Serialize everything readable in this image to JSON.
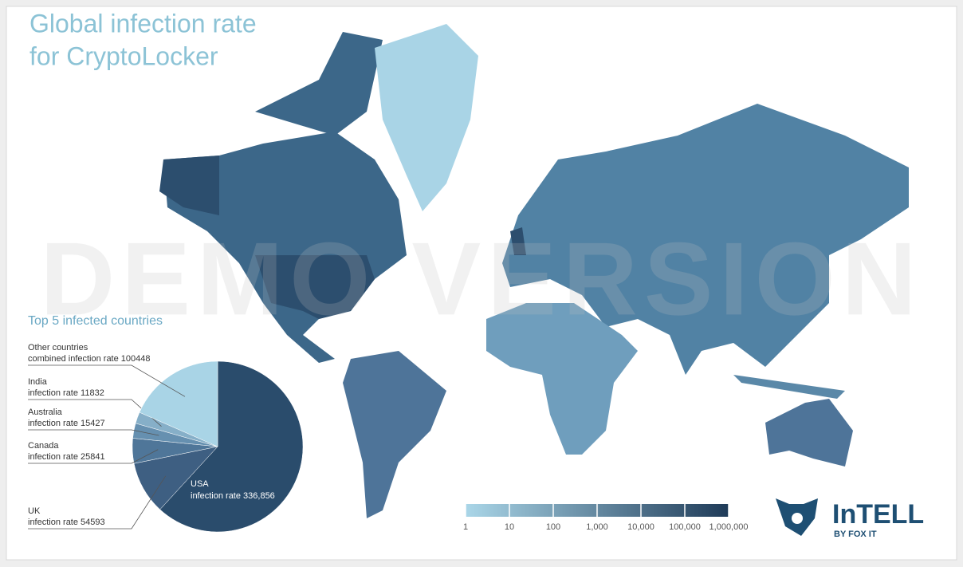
{
  "chart_data": [
    {
      "type": "map",
      "title": [
        "Global infection rate",
        "for CryptoLocker"
      ],
      "watermark": "DEMO VERSION",
      "log": true,
      "xlim": [
        1,
        1000000
      ],
      "xticks": [
        1,
        10,
        100,
        {
          "value": 1000,
          "label": "1,000"
        },
        {
          "value": 10000,
          "label": "10,000"
        },
        {
          "value": 100000,
          "label": "100,000"
        },
        {
          "value": 1000000,
          "label": "1,000,000"
        }
      ],
      "colors": [
        "#aad6e8",
        "#1f3b58"
      ]
    },
    {
      "type": "pie",
      "title": "Top 5 infected countries",
      "categories": [
        "USA",
        "UK",
        "Canada",
        "Australia",
        "India",
        "Other countries"
      ],
      "values": [
        336856,
        54593,
        25841,
        15427,
        11832,
        100448
      ],
      "value_labels": [
        "infection rate 336,856",
        "infection rate 54593",
        "infection rate 25841",
        "infection rate 15427",
        "infection rate 11832",
        "combined infection rate 100448"
      ],
      "colors": [
        "#2a4c6c",
        "#3e5f82",
        "#4f7699",
        "#6690b0",
        "#86afc8",
        "#a9d4e6"
      ]
    }
  ],
  "brand": {
    "name": "InTELL",
    "tagline": "BY FOX IT"
  }
}
